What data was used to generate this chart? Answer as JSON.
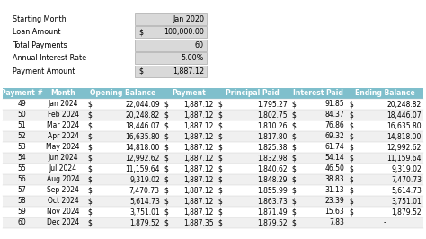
{
  "summary_labels": [
    "Starting Month",
    "Loan Amount",
    "Total Payments",
    "Annual Interest Rate",
    "Payment Amount"
  ],
  "summary_values": [
    "Jan 2020",
    "100,000.00",
    "60",
    "5.00%",
    "1,887.12"
  ],
  "summary_has_dollar": [
    false,
    true,
    false,
    false,
    true
  ],
  "headers": [
    "Payment #",
    "Month",
    "Opening Balance",
    "Payment",
    "Principal Paid",
    "Interest Paid",
    "Ending Balance"
  ],
  "rows": [
    [
      "49",
      "Jan 2024",
      "22,044.09",
      "1,887.12",
      "1,795.27",
      "91.85",
      "20,248.82"
    ],
    [
      "50",
      "Feb 2024",
      "20,248.82",
      "1,887.12",
      "1,802.75",
      "84.37",
      "18,446.07"
    ],
    [
      "51",
      "Mar 2024",
      "18,446.07",
      "1,887.12",
      "1,810.26",
      "76.86",
      "16,635.80"
    ],
    [
      "52",
      "Apr 2024",
      "16,635.80",
      "1,887.12",
      "1,817.80",
      "69.32",
      "14,818.00"
    ],
    [
      "53",
      "May 2024",
      "14,818.00",
      "1,887.12",
      "1,825.38",
      "61.74",
      "12,992.62"
    ],
    [
      "54",
      "Jun 2024",
      "12,992.62",
      "1,887.12",
      "1,832.98",
      "54.14",
      "11,159.64"
    ],
    [
      "55",
      "Jul 2024",
      "11,159.64",
      "1,887.12",
      "1,840.62",
      "46.50",
      "9,319.02"
    ],
    [
      "56",
      "Aug 2024",
      "9,319.02",
      "1,887.12",
      "1,848.29",
      "38.83",
      "7,470.73"
    ],
    [
      "57",
      "Sep 2024",
      "7,470.73",
      "1,887.12",
      "1,855.99",
      "31.13",
      "5,614.73"
    ],
    [
      "58",
      "Oct 2024",
      "5,614.73",
      "1,887.12",
      "1,863.73",
      "23.39",
      "3,751.01"
    ],
    [
      "59",
      "Nov 2024",
      "3,751.01",
      "1,887.12",
      "1,871.49",
      "15.63",
      "1,879.52"
    ],
    [
      "60",
      "Dec 2024",
      "1,879.52",
      "1,887.35",
      "1,879.52",
      "7.83",
      "-"
    ]
  ],
  "col_is_number": [
    false,
    false,
    true,
    true,
    true,
    true,
    true
  ],
  "header_bg": "#7FBFCC",
  "header_text": "#ffffff",
  "row_bg_even": "#ffffff",
  "row_bg_odd": "#f0f0f0",
  "summary_box_bg": "#d9d9d9",
  "summary_box_border": "#aaaaaa",
  "label_color": "#000000",
  "text_color": "#000000",
  "bg_color": "#ffffff",
  "font_size": 5.5,
  "header_font_size": 5.5,
  "summary_font_size": 5.8
}
